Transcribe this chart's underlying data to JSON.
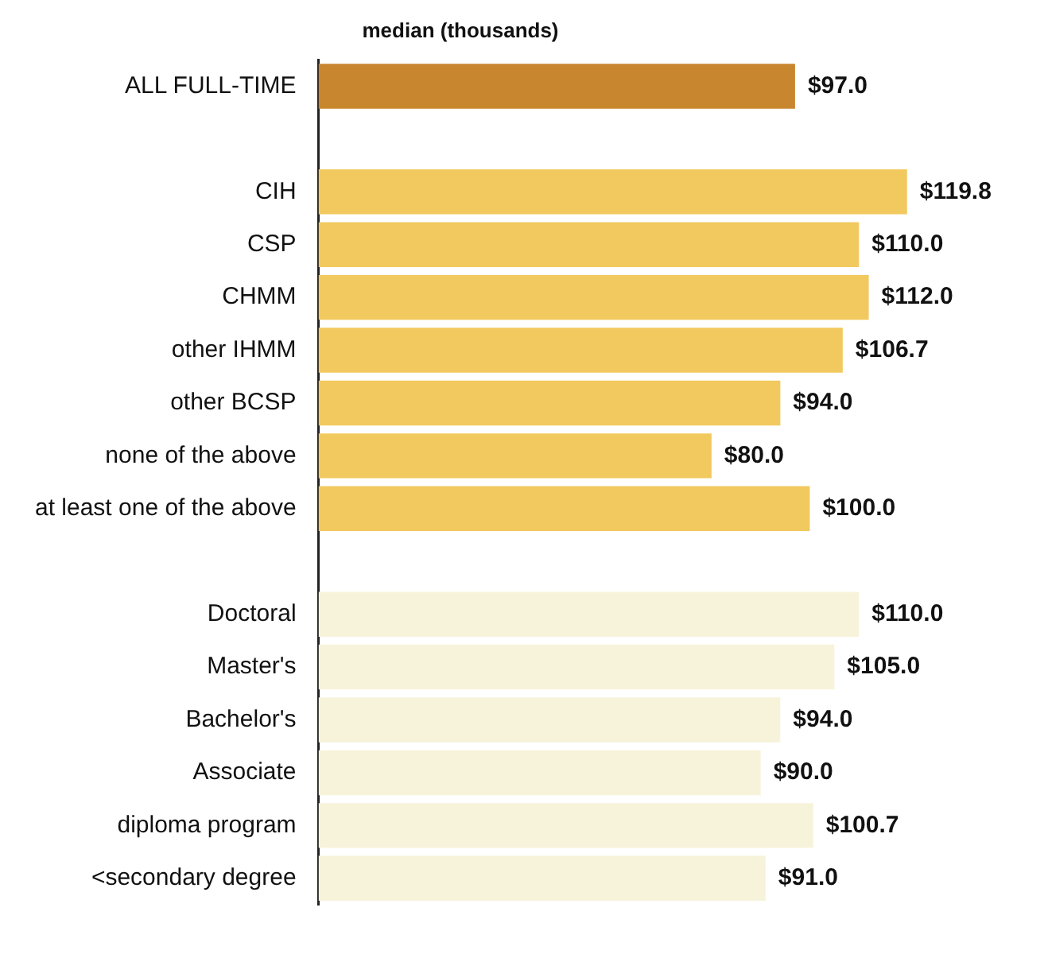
{
  "chart_data": {
    "type": "bar",
    "orientation": "horizontal",
    "title": "median (thousands)",
    "categories": [
      "ALL FULL-TIME",
      null,
      "CIH",
      "CSP",
      "CHMM",
      "other IHMM",
      "other BCSP",
      "none of the above",
      "at least one of the above",
      null,
      "Doctoral",
      "Master's",
      "Bachelor's",
      "Associate",
      "diploma program",
      "<secondary degree"
    ],
    "values": [
      97.0,
      null,
      119.8,
      110.0,
      112.0,
      106.7,
      94.0,
      80.0,
      100.0,
      null,
      110.0,
      105.0,
      94.0,
      90.0,
      100.7,
      91.0
    ],
    "value_labels": [
      "$97.0",
      null,
      "$119.8",
      "$110.0",
      "$112.0",
      "$106.7",
      "$94.0",
      "$80.0",
      "$100.0",
      null,
      "$110.0",
      "$105.0",
      "$94.0",
      "$90.0",
      "$100.7",
      "$91.0"
    ],
    "colors": [
      "#c8862e",
      null,
      "#f2c95e",
      "#f2c95e",
      "#f2c95e",
      "#f2c95e",
      "#f2c95e",
      "#f2c95e",
      "#f2c95e",
      null,
      "#f7f3da",
      "#f7f3da",
      "#f7f3da",
      "#f7f3da",
      "#f7f3da",
      "#f7f3da"
    ],
    "legend": false
  }
}
